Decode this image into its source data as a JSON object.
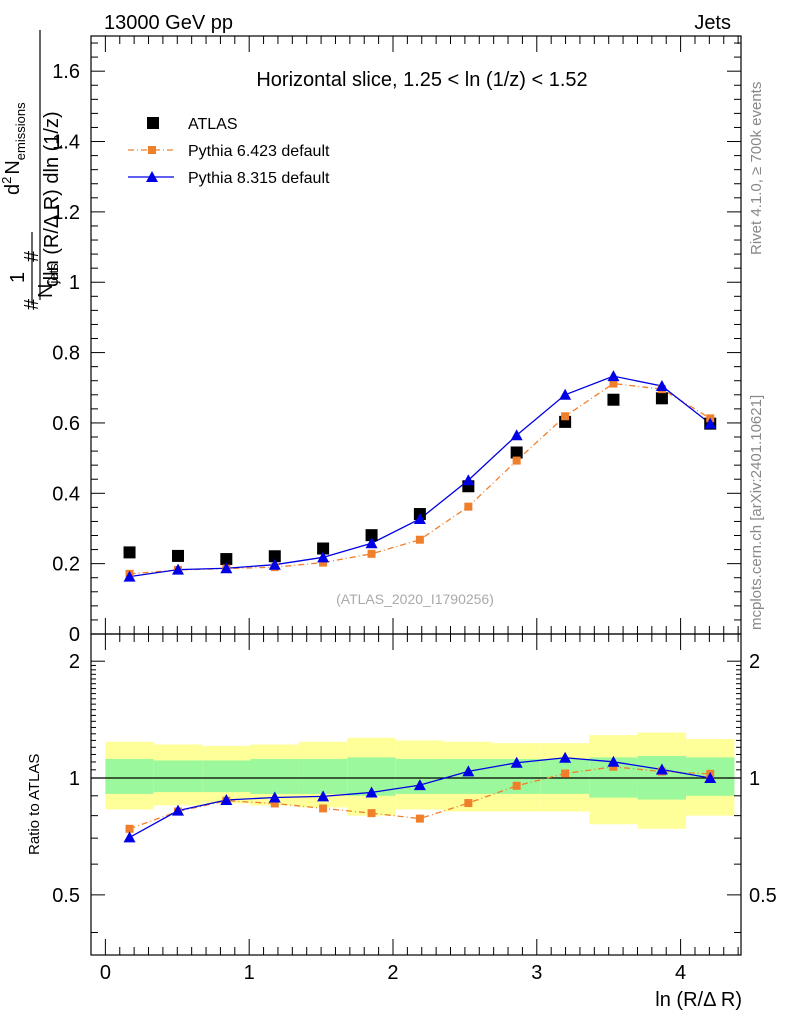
{
  "header": {
    "left": "13000 GeV pp",
    "right": "Jets"
  },
  "side_labels": {
    "rivet": "Rivet 4.1.0, ≥ 700k events",
    "mcplots": "mcplots.cern.ch [arXiv:2401.10621]"
  },
  "chart_data": [
    {
      "type": "scatter",
      "title": "Horizontal slice, 1.25 < ln (1/z) < 1.52",
      "watermark": "(ATLAS_2020_I1790256)",
      "xlabel": "ln (R/Δ R)",
      "ylabel": "1/N_jets dN_emissions / dln(R/ΔR) dln(1/z)",
      "ylabel_parts": {
        "prefix": "#",
        "one": "1",
        "njets": "N",
        "njets_sub": "jets",
        "d2": "d",
        "d2_sup": "2",
        "nemis": "N",
        "nemis_sub": "emissions",
        "hash2": "#",
        "denom": "dln (R/Δ R) dln (1/z)"
      },
      "xlim": [
        -0.1,
        4.42
      ],
      "ylim": [
        0,
        1.7
      ],
      "yticks": [
        0.2,
        0.4,
        0.6,
        0.8,
        1,
        1.2,
        1.4,
        1.6
      ],
      "yticklabels": [
        "0.2",
        "0.4",
        "0.6",
        "0.8",
        "1",
        "1.2",
        "1.4",
        "1.6"
      ],
      "bottom_tick_label": "0",
      "x": [
        0.168,
        0.505,
        0.841,
        1.178,
        1.514,
        1.851,
        2.187,
        2.524,
        2.86,
        3.197,
        3.533,
        3.87,
        4.206
      ],
      "series": [
        {
          "name": "ATLAS",
          "marker": "square",
          "color": "#000000",
          "values": [
            0.232,
            0.222,
            0.213,
            0.221,
            0.243,
            0.281,
            0.341,
            0.42,
            0.516,
            0.603,
            0.666,
            0.67,
            0.598
          ]
        },
        {
          "name": "Pythia 6.423 default",
          "marker": "small-square",
          "line": "dash-dot",
          "color": "#f07f2c",
          "values": [
            0.171,
            0.182,
            0.186,
            0.19,
            0.203,
            0.228,
            0.268,
            0.362,
            0.493,
            0.619,
            0.712,
            0.696,
            0.613
          ]
        },
        {
          "name": "Pythia 8.315 default",
          "marker": "triangle",
          "line": "solid",
          "color": "#0000e6",
          "values": [
            0.163,
            0.183,
            0.187,
            0.197,
            0.218,
            0.258,
            0.327,
            0.437,
            0.565,
            0.68,
            0.733,
            0.705,
            0.598
          ]
        }
      ]
    },
    {
      "type": "line",
      "ylabel": "Ratio to ATLAS",
      "xlabel": "ln (R/Δ R)",
      "xlim": [
        -0.1,
        4.42
      ],
      "ylim": [
        0.35,
        2.35
      ],
      "yticks": [
        0.5,
        1,
        2
      ],
      "yticklabels": [
        "0.5",
        "1",
        "2"
      ],
      "xticks": [
        0,
        1,
        2,
        3,
        4
      ],
      "xticklabels": [
        "0",
        "1",
        "2",
        "3",
        "4"
      ],
      "reference_line": 1,
      "x": [
        0.168,
        0.505,
        0.841,
        1.178,
        1.514,
        1.851,
        2.187,
        2.524,
        2.86,
        3.197,
        3.533,
        3.87,
        4.206
      ],
      "bin_edges": [
        0,
        0.336,
        0.673,
        1.009,
        1.346,
        1.682,
        2.019,
        2.355,
        2.692,
        3.028,
        3.365,
        3.701,
        4.038,
        4.374
      ],
      "band_inner": {
        "color": "#9cf89c",
        "low": [
          0.91,
          0.92,
          0.92,
          0.91,
          0.91,
          0.9,
          0.91,
          0.91,
          0.91,
          0.91,
          0.89,
          0.88,
          0.9
        ],
        "high": [
          1.12,
          1.11,
          1.11,
          1.12,
          1.12,
          1.13,
          1.12,
          1.12,
          1.12,
          1.12,
          1.13,
          1.14,
          1.13
        ]
      },
      "band_outer": {
        "color": "#ffff99",
        "low": [
          0.83,
          0.85,
          0.86,
          0.85,
          0.84,
          0.8,
          0.83,
          0.82,
          0.82,
          0.82,
          0.76,
          0.74,
          0.8
        ],
        "high": [
          1.24,
          1.22,
          1.21,
          1.22,
          1.24,
          1.27,
          1.25,
          1.24,
          1.23,
          1.23,
          1.29,
          1.31,
          1.26
        ]
      },
      "series": [
        {
          "name": "Pythia 6.423 default",
          "color": "#f07f2c",
          "values": [
            0.74,
            0.82,
            0.874,
            0.86,
            0.835,
            0.812,
            0.786,
            0.862,
            0.955,
            1.027,
            1.069,
            1.039,
            1.025
          ]
        },
        {
          "name": "Pythia 8.315 default",
          "color": "#0000e6",
          "values": [
            0.703,
            0.824,
            0.878,
            0.891,
            0.897,
            0.918,
            0.959,
            1.04,
            1.095,
            1.128,
            1.101,
            1.052,
            1.0
          ]
        }
      ]
    }
  ]
}
